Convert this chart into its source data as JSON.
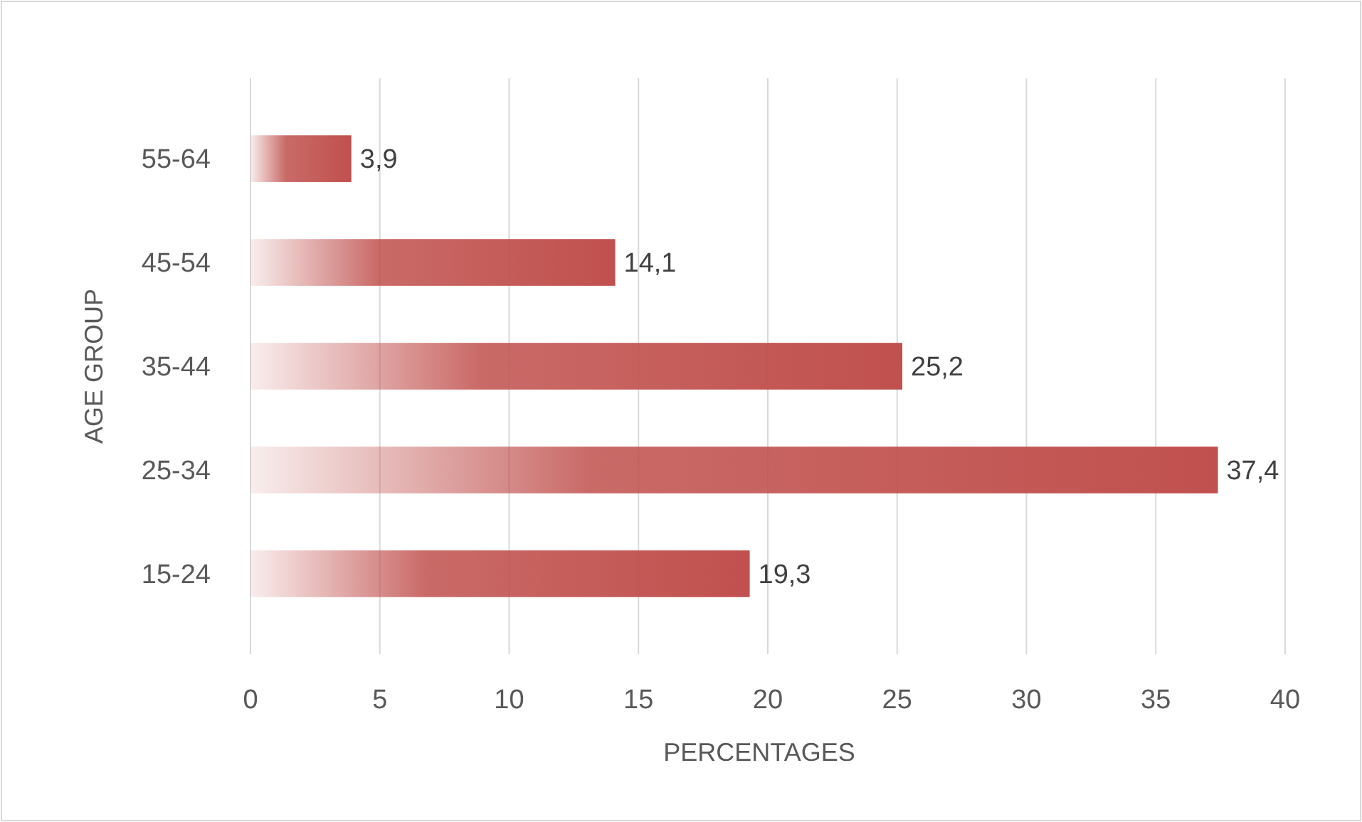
{
  "chart_data": {
    "type": "bar",
    "orientation": "horizontal",
    "xlabel": "PERCENTAGES",
    "ylabel": "AGE GROUP",
    "categories": [
      "55-64",
      "45-54",
      "35-44",
      "25-34",
      "15-24"
    ],
    "values": [
      3.9,
      14.1,
      25.2,
      37.4,
      19.3
    ],
    "value_labels": [
      "3,9",
      "14,1",
      "25,2",
      "37,4",
      "19,3"
    ],
    "color": "#c0504d",
    "xlim": [
      0,
      40
    ],
    "xticks": [
      0,
      5,
      10,
      15,
      20,
      25,
      30,
      35,
      40
    ],
    "grid": "x"
  }
}
